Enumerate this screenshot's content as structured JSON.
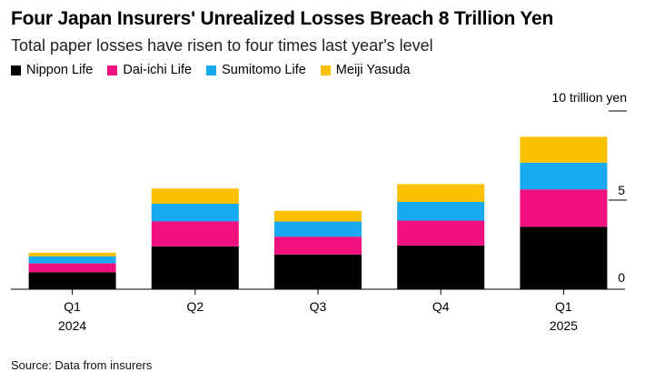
{
  "chart_data": {
    "type": "bar",
    "stacked": true,
    "title": "Four Japan Insurers' Unrealized Losses Breach 8 Trillion Yen",
    "subtitle": "Total paper losses have risen to four times last year's level",
    "unit_label": "10 trillion yen",
    "categories": [
      {
        "label": "Q1",
        "year": "2024"
      },
      {
        "label": "Q2",
        "year": ""
      },
      {
        "label": "Q3",
        "year": ""
      },
      {
        "label": "Q4",
        "year": ""
      },
      {
        "label": "Q1",
        "year": "2025"
      }
    ],
    "series": [
      {
        "name": "Nippon Life",
        "color": "#000000",
        "values": [
          0.95,
          2.4,
          1.95,
          2.45,
          3.5
        ]
      },
      {
        "name": "Dai-ichi Life",
        "color": "#f0117f",
        "values": [
          0.5,
          1.4,
          1.0,
          1.4,
          2.1
        ]
      },
      {
        "name": "Sumitomo Life",
        "color": "#19a9f0",
        "values": [
          0.4,
          1.0,
          0.85,
          1.05,
          1.5
        ]
      },
      {
        "name": "Meiji Yasuda",
        "color": "#fcc002",
        "values": [
          0.2,
          0.85,
          0.6,
          1.0,
          1.45
        ]
      }
    ],
    "yticks": [
      {
        "value": 0,
        "label": "0"
      },
      {
        "value": 5,
        "label": "5"
      },
      {
        "value": 10,
        "label": ""
      }
    ],
    "ylim": [
      0,
      10
    ],
    "legend_position": "top-left",
    "grid": false
  },
  "source": "Source: Data from insurers"
}
